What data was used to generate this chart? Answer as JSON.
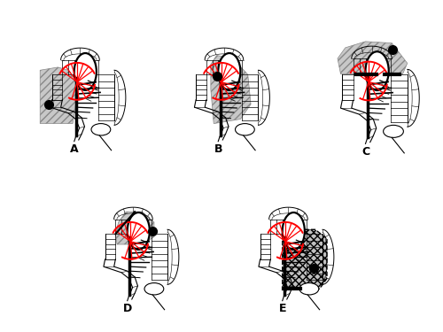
{
  "background_color": "#ffffff",
  "labels": [
    "A",
    "B",
    "C",
    "D",
    "E"
  ],
  "label_fontsize": 9,
  "fig_width": 5.0,
  "fig_height": 3.75,
  "panel_positions": {
    "A": [
      0.0,
      0.47,
      0.335,
      0.53
    ],
    "B": [
      0.325,
      0.47,
      0.335,
      0.53
    ],
    "C": [
      0.65,
      0.47,
      0.35,
      0.53
    ],
    "D": [
      0.12,
      -0.01,
      0.335,
      0.53
    ],
    "E": [
      0.47,
      -0.01,
      0.335,
      0.53
    ]
  }
}
